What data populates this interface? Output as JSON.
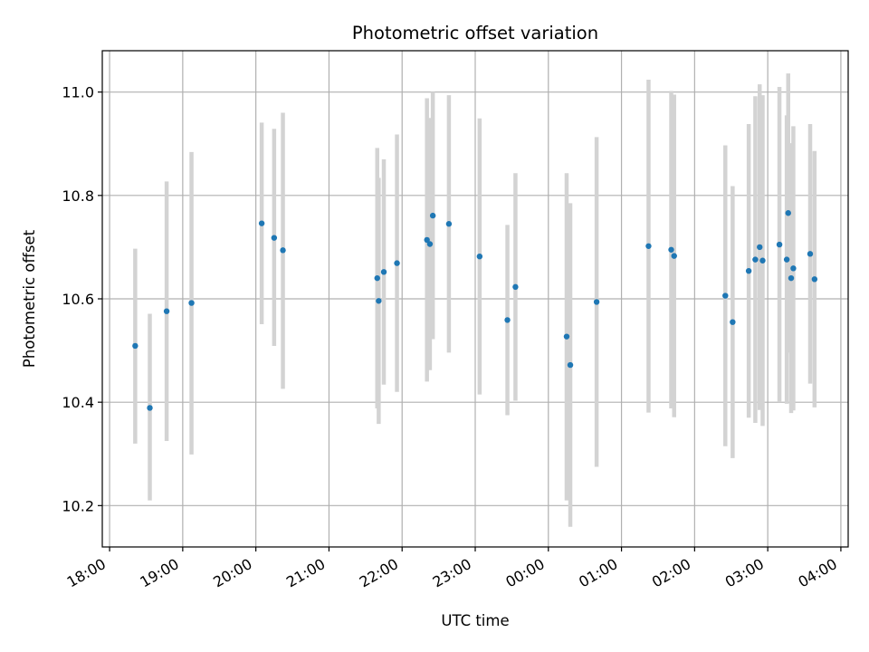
{
  "chart_data": {
    "type": "scatter",
    "title": "Photometric offset variation",
    "xlabel": "UTC time",
    "ylabel": "Photometric offset",
    "x_unit": "hours",
    "xlim": [
      17.9,
      28.1
    ],
    "ylim": [
      10.12,
      11.08
    ],
    "x_ticks": [
      18,
      19,
      20,
      21,
      22,
      23,
      24,
      25,
      26,
      27,
      28
    ],
    "x_tick_labels": [
      "18:00",
      "19:00",
      "20:00",
      "21:00",
      "22:00",
      "23:00",
      "00:00",
      "01:00",
      "02:00",
      "03:00",
      "04:00"
    ],
    "y_ticks": [
      10.2,
      10.4,
      10.6,
      10.8,
      11.0
    ],
    "y_tick_labels": [
      "10.2",
      "10.4",
      "10.6",
      "10.8",
      "11.0"
    ],
    "grid": true,
    "point_color": "#1f77b4",
    "errorbar_color": "#d3d3d3",
    "points": [
      {
        "x": 18.35,
        "y": 10.509,
        "lo": 10.32,
        "hi": 10.697
      },
      {
        "x": 18.55,
        "y": 10.389,
        "lo": 10.21,
        "hi": 10.571
      },
      {
        "x": 18.78,
        "y": 10.576,
        "lo": 10.325,
        "hi": 10.827
      },
      {
        "x": 19.12,
        "y": 10.592,
        "lo": 10.299,
        "hi": 10.884
      },
      {
        "x": 20.08,
        "y": 10.746,
        "lo": 10.551,
        "hi": 10.941
      },
      {
        "x": 20.25,
        "y": 10.718,
        "lo": 10.509,
        "hi": 10.929
      },
      {
        "x": 20.37,
        "y": 10.694,
        "lo": 10.426,
        "hi": 10.96
      },
      {
        "x": 21.66,
        "y": 10.64,
        "lo": 10.388,
        "hi": 10.892
      },
      {
        "x": 21.68,
        "y": 10.596,
        "lo": 10.358,
        "hi": 10.834
      },
      {
        "x": 21.75,
        "y": 10.652,
        "lo": 10.434,
        "hi": 10.87
      },
      {
        "x": 21.93,
        "y": 10.669,
        "lo": 10.42,
        "hi": 10.918
      },
      {
        "x": 22.34,
        "y": 10.714,
        "lo": 10.44,
        "hi": 10.988
      },
      {
        "x": 22.38,
        "y": 10.706,
        "lo": 10.462,
        "hi": 10.95
      },
      {
        "x": 22.42,
        "y": 10.761,
        "lo": 10.522,
        "hi": 11.0
      },
      {
        "x": 22.64,
        "y": 10.745,
        "lo": 10.496,
        "hi": 10.994
      },
      {
        "x": 23.06,
        "y": 10.682,
        "lo": 10.415,
        "hi": 10.949
      },
      {
        "x": 23.44,
        "y": 10.559,
        "lo": 10.375,
        "hi": 10.743
      },
      {
        "x": 23.55,
        "y": 10.623,
        "lo": 10.403,
        "hi": 10.843
      },
      {
        "x": 24.25,
        "y": 10.527,
        "lo": 10.21,
        "hi": 10.843
      },
      {
        "x": 24.3,
        "y": 10.472,
        "lo": 10.159,
        "hi": 10.785
      },
      {
        "x": 24.66,
        "y": 10.594,
        "lo": 10.275,
        "hi": 10.913
      },
      {
        "x": 25.37,
        "y": 10.702,
        "lo": 10.38,
        "hi": 11.024
      },
      {
        "x": 25.68,
        "y": 10.695,
        "lo": 10.388,
        "hi": 11.002
      },
      {
        "x": 25.72,
        "y": 10.683,
        "lo": 10.371,
        "hi": 10.995
      },
      {
        "x": 26.42,
        "y": 10.606,
        "lo": 10.315,
        "hi": 10.897
      },
      {
        "x": 26.52,
        "y": 10.555,
        "lo": 10.292,
        "hi": 10.818
      },
      {
        "x": 26.74,
        "y": 10.654,
        "lo": 10.37,
        "hi": 10.938
      },
      {
        "x": 26.83,
        "y": 10.676,
        "lo": 10.36,
        "hi": 10.992
      },
      {
        "x": 26.89,
        "y": 10.7,
        "lo": 10.385,
        "hi": 11.015
      },
      {
        "x": 26.93,
        "y": 10.674,
        "lo": 10.354,
        "hi": 10.994
      },
      {
        "x": 27.16,
        "y": 10.705,
        "lo": 10.4,
        "hi": 11.01
      },
      {
        "x": 27.26,
        "y": 10.676,
        "lo": 10.397,
        "hi": 10.955
      },
      {
        "x": 27.28,
        "y": 10.766,
        "lo": 10.496,
        "hi": 11.036
      },
      {
        "x": 27.32,
        "y": 10.64,
        "lo": 10.379,
        "hi": 10.901
      },
      {
        "x": 27.35,
        "y": 10.659,
        "lo": 10.384,
        "hi": 10.934
      },
      {
        "x": 27.58,
        "y": 10.687,
        "lo": 10.436,
        "hi": 10.938
      },
      {
        "x": 27.64,
        "y": 10.638,
        "lo": 10.39,
        "hi": 10.886
      }
    ]
  }
}
